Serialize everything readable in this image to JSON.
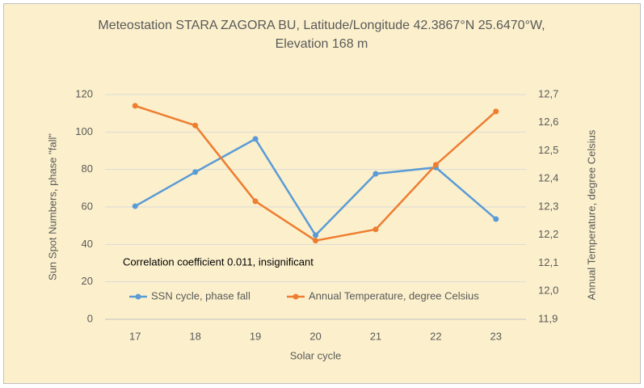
{
  "chart_data": {
    "type": "line",
    "title": [
      "Meteostation STARA ZAGORA BU, Latitude/Longitude 42.3867°N 25.6470°W,",
      "Elevation 168 m"
    ],
    "x_label": "Solar cycle",
    "y_label": "Sun Spot Numbers, phase \"fall\"",
    "y2_label": "Annual Temperature, degree Celsius",
    "annotation": "Correlation coefficient 0.011, insignificant",
    "categories": [
      "17",
      "18",
      "19",
      "20",
      "21",
      "22",
      "23"
    ],
    "series": [
      {
        "name": "SSN cycle, phase fall",
        "color": "#5b9bd5",
        "values": [
          60.4,
          78.6,
          96.3,
          44.9,
          77.7,
          81.1,
          53.5
        ]
      },
      {
        "name": "Annual Temperature, degree Celsius",
        "color": "#ed7d31",
        "axis": "y2",
        "values": [
          12.66,
          12.59,
          12.32,
          12.18,
          12.22,
          12.45,
          12.64
        ]
      }
    ],
    "ylim": [
      0,
      120
    ],
    "yticks": [
      0,
      20,
      40,
      60,
      80,
      100,
      120
    ],
    "y2lim": [
      11.9,
      12.7
    ],
    "y2ticks": [
      {
        "value": 11.9,
        "label": "11,9"
      },
      {
        "value": 12.0,
        "label": "12,0"
      },
      {
        "value": 12.1,
        "label": "12,1"
      },
      {
        "value": 12.2,
        "label": "12,2"
      },
      {
        "value": 12.3,
        "label": "12,3"
      },
      {
        "value": 12.4,
        "label": "12,4"
      },
      {
        "value": 12.5,
        "label": "12,5"
      },
      {
        "value": 12.6,
        "label": "12,6"
      },
      {
        "value": 12.7,
        "label": "12,7"
      }
    ],
    "grid": true,
    "legend": "lower center",
    "background": "#fcf0cc"
  }
}
